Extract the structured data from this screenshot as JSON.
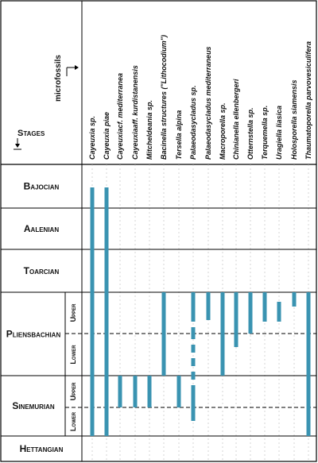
{
  "header": {
    "axis_label": "microfossils",
    "stages_label": "Stages"
  },
  "stages": [
    {
      "id": "bajocian",
      "label": "Bajocian"
    },
    {
      "id": "aalenian",
      "label": "Aalenian"
    },
    {
      "id": "toarcian",
      "label": "Toarcian"
    },
    {
      "id": "pliensbachian",
      "label": "Pliensbachian",
      "substages": [
        "Upper",
        "Lower"
      ]
    },
    {
      "id": "sinemurian",
      "label": "Sinemurian",
      "substages": [
        "Upper",
        "Lower"
      ]
    },
    {
      "id": "hettangian",
      "label": "Hettangian"
    }
  ],
  "microfossils": [
    "Cayeuxia sp.",
    "Cayeuxia piae",
    "Cayeuxiacf. mediterranea",
    "Cayeuxiaaff. kurdistanensis",
    "Mitcheldeania sp.",
    "Bacinella structures (\"Lithocodium\")",
    "Tersella alpina",
    "Palaeodasycladus sp.",
    "Palaeodasycladus mediterraneus",
    "Macroporella sp.",
    "Chinianella ellenbergeri",
    "Otternstella sp.",
    "Terquemella sp.",
    "Uragiella liasica",
    "Holosporella siamensis",
    "Thaumatoporella parvovesiculifera"
  ],
  "colors": {
    "bar": "#3a93b1",
    "grid": "#000000",
    "dash": "#000000"
  }
}
